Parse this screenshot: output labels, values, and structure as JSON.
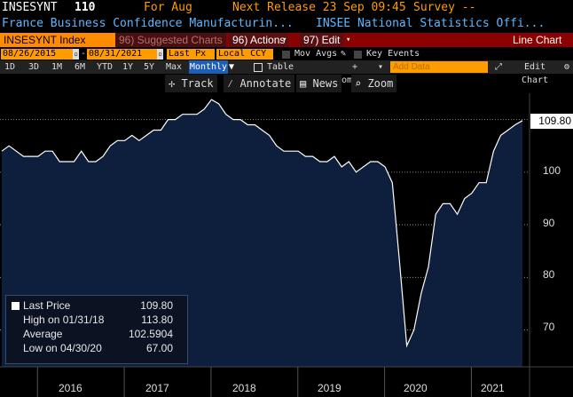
{
  "header": {
    "ticker": "INSESYNT",
    "value": "110",
    "for_label": "For Aug",
    "next_release": "Next Release 23 Sep 09:45",
    "survey": "Survey --",
    "description": "France Business Confidence Manufacturin...",
    "source": "INSEE National Statistics Offi..."
  },
  "toolbar": {
    "ticker_field": "INSESYNT Index",
    "suggested": "96) Suggested Charts",
    "actions": "96) Actions",
    "edit": "97) Edit",
    "chart_title": "Line Chart"
  },
  "controls": {
    "start_date": "08/26/2015",
    "end_date": "08/31/2021",
    "field": "Last Px",
    "currency": "Local CCY",
    "mov_avgs": "Mov Avgs",
    "key_events": "Key Events"
  },
  "tabs": {
    "periods": [
      "1D",
      "3D",
      "1M",
      "6M",
      "YTD",
      "1Y",
      "5Y",
      "Max"
    ],
    "frequency": "Monthly",
    "table": "Table",
    "compare": "+ Compare",
    "add_data_placeholder": "Add Data",
    "edit_chart": "Edit Chart"
  },
  "chart_tools": {
    "track": "Track",
    "annotate": "Annotate",
    "news": "News",
    "zoom": "Zoom"
  },
  "legend": {
    "last_price_label": "Last Price",
    "last_price": "109.80",
    "high_label": "High on 01/31/18",
    "high": "113.80",
    "average_label": "Average",
    "average": "102.5904",
    "low_label": "Low on 04/30/20",
    "low": "67.00"
  },
  "last_value_label": "109.80",
  "colors": {
    "accent": "#ff8c00",
    "area": "#0d1f3c",
    "line": "#ffffff",
    "toolbar": "#8b0000"
  },
  "chart_data": {
    "type": "area",
    "x": [
      "2015-08",
      "2015-09",
      "2015-10",
      "2015-11",
      "2015-12",
      "2016-01",
      "2016-02",
      "2016-03",
      "2016-04",
      "2016-05",
      "2016-06",
      "2016-07",
      "2016-08",
      "2016-09",
      "2016-10",
      "2016-11",
      "2016-12",
      "2017-01",
      "2017-02",
      "2017-03",
      "2017-04",
      "2017-05",
      "2017-06",
      "2017-07",
      "2017-08",
      "2017-09",
      "2017-10",
      "2017-11",
      "2017-12",
      "2018-01",
      "2018-02",
      "2018-03",
      "2018-04",
      "2018-05",
      "2018-06",
      "2018-07",
      "2018-08",
      "2018-09",
      "2018-10",
      "2018-11",
      "2018-12",
      "2019-01",
      "2019-02",
      "2019-03",
      "2019-04",
      "2019-05",
      "2019-06",
      "2019-07",
      "2019-08",
      "2019-09",
      "2019-10",
      "2019-11",
      "2019-12",
      "2020-01",
      "2020-02",
      "2020-03",
      "2020-04",
      "2020-05",
      "2020-06",
      "2020-07",
      "2020-08",
      "2020-09",
      "2020-10",
      "2020-11",
      "2020-12",
      "2021-01",
      "2021-02",
      "2021-03",
      "2021-04",
      "2021-05",
      "2021-06",
      "2021-07",
      "2021-08"
    ],
    "values": [
      104,
      105,
      104,
      103,
      103,
      103,
      104,
      104,
      102,
      102,
      102,
      104,
      102,
      102,
      103,
      105,
      106,
      106,
      107,
      106,
      107,
      108,
      108,
      110,
      110,
      111,
      111,
      111,
      112,
      113.8,
      113,
      111,
      110,
      110,
      109,
      109,
      108,
      107,
      105,
      104,
      104,
      104,
      103,
      103,
      102,
      102,
      103,
      101,
      102,
      100,
      101,
      102,
      102,
      101,
      98,
      83,
      67,
      70,
      77,
      82,
      92,
      94,
      94,
      92,
      95,
      96,
      98,
      98,
      104,
      107,
      108,
      109,
      109.8
    ],
    "ylim": [
      63,
      115
    ],
    "yticks": [
      70,
      80,
      90,
      100
    ],
    "xtick_labels": [
      "2016",
      "2017",
      "2018",
      "2019",
      "2020",
      "2021"
    ],
    "grid": "horizontal dotted"
  }
}
